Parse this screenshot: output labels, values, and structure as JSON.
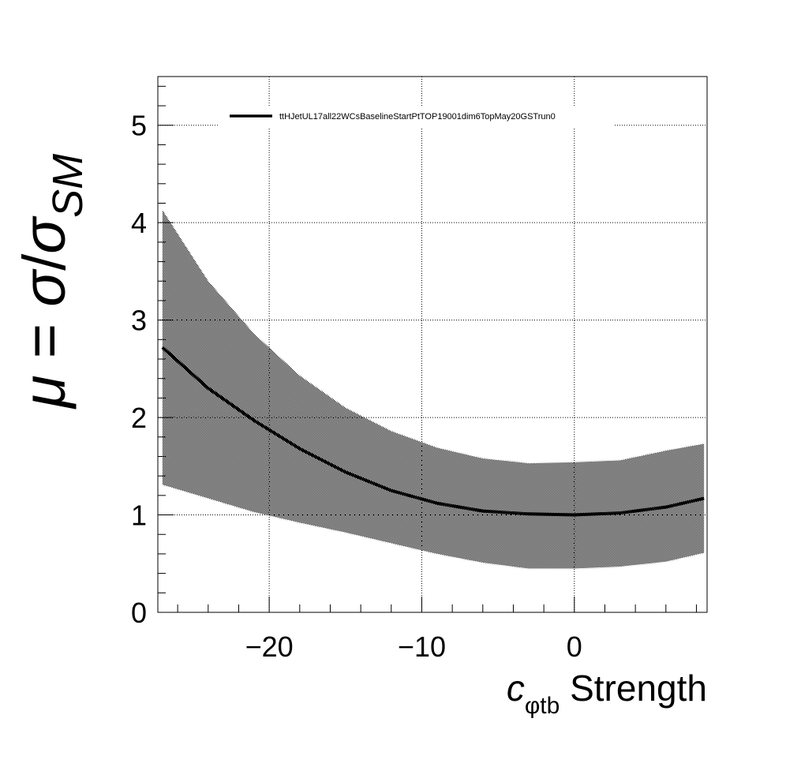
{
  "chart_data": {
    "type": "line",
    "title": "",
    "xlabel": {
      "symbol": "c",
      "subscript": "φtb",
      "text": " Strength"
    },
    "ylabel": {
      "symbol": "μ",
      "equals": " = ",
      "numerator": "σ",
      "slash": "/",
      "denominator": "σ",
      "subscript": "SM"
    },
    "xlim": [
      -27.3,
      8.7
    ],
    "ylim": [
      0,
      5.5
    ],
    "xticks": [
      -20,
      -10,
      0
    ],
    "xtick_labels": [
      "−20",
      "−10",
      "0"
    ],
    "yticks": [
      0,
      1,
      2,
      3,
      4,
      5
    ],
    "ytick_labels": [
      "0",
      "1",
      "2",
      "3",
      "4",
      "5"
    ],
    "grid": true,
    "legend_position": "top",
    "series": [
      {
        "name": "ttHJetUL17all22WCsBaselineStartPtTOP19001dim6TopMay20GSTrun0",
        "color": "#000000",
        "x": [
          -27,
          -24,
          -21,
          -18,
          -15,
          -12,
          -9,
          -6,
          -3,
          0,
          3,
          6,
          8.5
        ],
        "y": [
          2.72,
          2.3,
          1.97,
          1.68,
          1.44,
          1.25,
          1.12,
          1.04,
          1.01,
          1.0,
          1.02,
          1.08,
          1.17
        ],
        "band_upper": [
          4.13,
          3.4,
          2.86,
          2.43,
          2.1,
          1.86,
          1.69,
          1.58,
          1.53,
          1.54,
          1.56,
          1.66,
          1.73
        ],
        "band_lower": [
          1.31,
          1.17,
          1.03,
          0.92,
          0.82,
          0.71,
          0.6,
          0.51,
          0.45,
          0.45,
          0.47,
          0.52,
          0.61
        ]
      }
    ]
  }
}
